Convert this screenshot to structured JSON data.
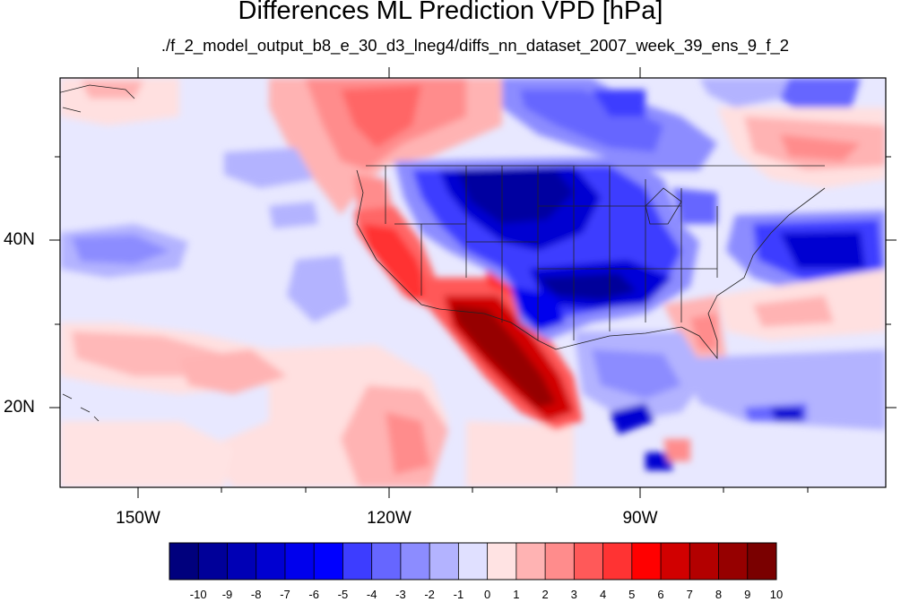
{
  "title": "Differences ML Prediction VPD [hPa]",
  "subtitle": "./f_2_model_output_b8_e_30_d3_lneg4/diffs_nn_dataset_2007_week_39_ens_9_f_2",
  "map": {
    "lon_labels": [
      "150W",
      "120W",
      "90W"
    ],
    "lat_labels": [
      "40N",
      "20N"
    ]
  },
  "colorbar": {
    "labels": [
      "-10",
      "-9",
      "-8",
      "-7",
      "-6",
      "-5",
      "-4",
      "-3",
      "-2",
      "-1",
      "0",
      "1",
      "2",
      "3",
      "4",
      "5",
      "6",
      "7",
      "8",
      "9",
      "10"
    ],
    "colors": [
      "#00007d",
      "#000099",
      "#0000b5",
      "#0000d1",
      "#0000ed",
      "#0000ff",
      "#3d3dff",
      "#6666ff",
      "#8c8cff",
      "#b3b3ff",
      "#e0e0ff",
      "#ffe3e3",
      "#ffb3b3",
      "#ff8c8c",
      "#ff5959",
      "#ff3333",
      "#ff0000",
      "#d10000",
      "#b30000",
      "#960000",
      "#7a0000"
    ]
  }
}
